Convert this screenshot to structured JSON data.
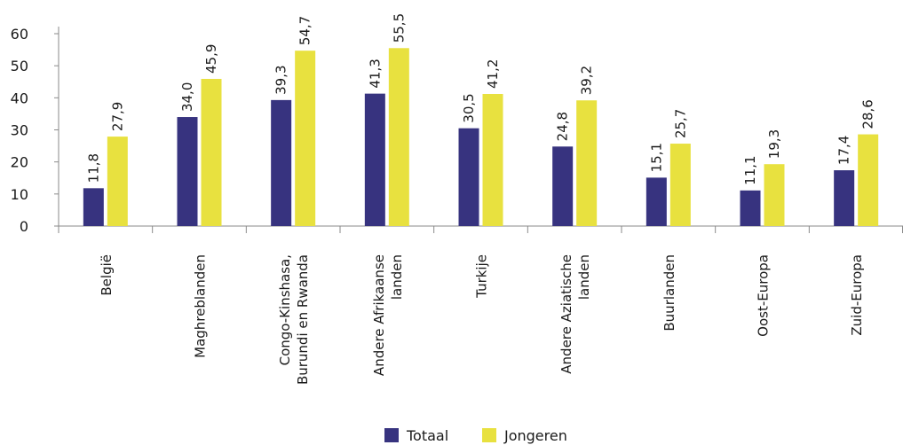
{
  "chart_data": {
    "type": "bar",
    "categories": [
      [
        "België"
      ],
      [
        "Maghreblanden"
      ],
      [
        "Congo-Kinshasa,",
        "Burundi en Rwanda"
      ],
      [
        "Andere Afrikaanse",
        "landen"
      ],
      [
        "Turkije"
      ],
      [
        "Andere Aziatische",
        "landen"
      ],
      [
        "Buurlanden"
      ],
      [
        "Oost-Europa"
      ],
      [
        "Zuid-Europa"
      ]
    ],
    "series": [
      {
        "name": "Totaal",
        "color": "#37337f",
        "values": [
          11.8,
          34.0,
          39.3,
          41.3,
          30.5,
          24.8,
          15.1,
          11.1,
          17.4
        ],
        "labels": [
          "11,8",
          "34,0",
          "39,3",
          "41,3",
          "30,5",
          "24,8",
          "15,1",
          "11,1",
          "17,4"
        ]
      },
      {
        "name": "Jongeren",
        "color": "#e8e13f",
        "values": [
          27.9,
          45.9,
          54.7,
          55.5,
          41.2,
          39.2,
          25.7,
          19.3,
          28.6
        ],
        "labels": [
          "27,9",
          "45,9",
          "54,7",
          "55,5",
          "41,2",
          "39,2",
          "25,7",
          "19,3",
          "28,6"
        ]
      }
    ],
    "ylim": [
      0,
      60
    ],
    "yticks": [
      0,
      10,
      20,
      30,
      40,
      50,
      60
    ],
    "grid": false,
    "legend": "bottom-center"
  }
}
